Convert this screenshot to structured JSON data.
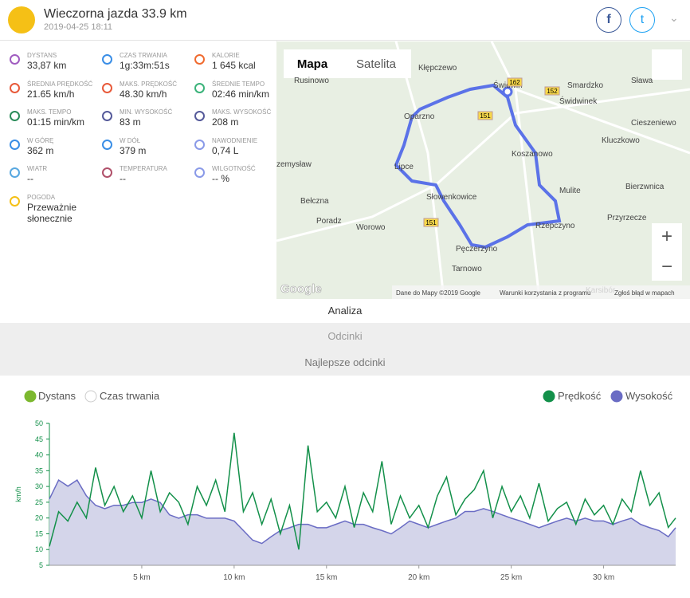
{
  "header": {
    "title": "Wieczorna jazda 33.9 km",
    "date": "2019-04-25 18:11"
  },
  "stats": [
    {
      "label": "DYSTANS",
      "value": "33,87 km"
    },
    {
      "label": "CZAS TRWANIA",
      "value": "1g:33m:51s"
    },
    {
      "label": "KALORIE",
      "value": "1 645 kcal"
    },
    {
      "label": "ŚREDNIA PRĘDKOŚĆ",
      "value": "21.65 km/h"
    },
    {
      "label": "MAKS. PRĘDKOŚĆ",
      "value": "48.30 km/h"
    },
    {
      "label": "ŚREDNIE TEMPO",
      "value": "02:46 min/km"
    },
    {
      "label": "MAKS. TEMPO",
      "value": "01:15 min/km"
    },
    {
      "label": "MIN. WYSOKOŚĆ",
      "value": "83 m"
    },
    {
      "label": "MAKS. WYSOKOŚĆ",
      "value": "208 m"
    },
    {
      "label": "W GÓRĘ",
      "value": "362 m"
    },
    {
      "label": "W DÓŁ",
      "value": "379 m"
    },
    {
      "label": "NAWODNIENIE",
      "value": "0,74 L"
    },
    {
      "label": "WIATR",
      "value": "--"
    },
    {
      "label": "TEMPERATURA",
      "value": "--"
    },
    {
      "label": "WILGOTNOŚĆ",
      "value": "-- %"
    },
    {
      "label": "POGODA",
      "value": "Przeważnie słonecznie"
    }
  ],
  "map": {
    "buttons": [
      "Mapa",
      "Satelita"
    ],
    "places": [
      "Kłępczewo",
      "Rusinowo",
      "Świdwin",
      "Smardzko",
      "Sława",
      "Świdwinek",
      "Oparzno",
      "Cieszeniewo",
      "Koszanowo",
      "Kluczkowo",
      "zemysław",
      "Lipce",
      "Mulite",
      "Bierzwnica",
      "Bełczna",
      "Słowenkowice",
      "Przyrzecze",
      "Poradz",
      "Worowo",
      "Rzepczyno",
      "Pęczerzyno",
      "Tarnowo",
      "Karsibór"
    ],
    "roads": [
      "162",
      "152",
      "151",
      "151"
    ],
    "attribution": [
      "Google",
      "Dane do Mapy ©2019 Google",
      "Warunki korzystania z programu",
      "Zgłoś błąd w mapach"
    ]
  },
  "tabs": [
    "Analiza",
    "Odcinki",
    "Najlepsze odcinki"
  ],
  "chart_data": {
    "type": "line",
    "x_options": [
      "Dystans",
      "Czas trwania"
    ],
    "ylabel": "km/h",
    "x": [
      0,
      0.5,
      1,
      1.5,
      2,
      2.5,
      3,
      3.5,
      4,
      4.5,
      5,
      5.5,
      6,
      6.5,
      7,
      7.5,
      8,
      8.5,
      9,
      9.5,
      10,
      10.5,
      11,
      11.5,
      12,
      12.5,
      13,
      13.5,
      14,
      14.5,
      15,
      15.5,
      16,
      16.5,
      17,
      17.5,
      18,
      18.5,
      19,
      19.5,
      20,
      20.5,
      21,
      21.5,
      22,
      22.5,
      23,
      23.5,
      24,
      24.5,
      25,
      25.5,
      26,
      26.5,
      27,
      27.5,
      28,
      28.5,
      29,
      29.5,
      30,
      30.5,
      31,
      31.5,
      32,
      32.5,
      33,
      33.5,
      33.9
    ],
    "series": [
      {
        "name": "Prędkość",
        "color": "#13904a",
        "values": [
          11,
          22,
          19,
          25,
          20,
          36,
          24,
          30,
          22,
          27,
          20,
          35,
          22,
          28,
          25,
          18,
          30,
          24,
          32,
          22,
          47,
          22,
          28,
          18,
          26,
          15,
          24,
          10,
          43,
          22,
          25,
          20,
          30,
          17,
          28,
          22,
          38,
          18,
          27,
          20,
          24,
          17,
          27,
          33,
          21,
          26,
          29,
          35,
          20,
          30,
          22,
          27,
          20,
          31,
          19,
          23,
          25,
          18,
          26,
          21,
          24,
          18,
          26,
          22,
          35,
          24,
          28,
          17,
          20
        ]
      },
      {
        "name": "Wysokość",
        "color": "#6a6cc4",
        "axis": "y2",
        "values": [
          171,
          205,
          194,
          205,
          177,
          160,
          154,
          160,
          160,
          165,
          165,
          171,
          165,
          143,
          137,
          143,
          143,
          137,
          137,
          137,
          132,
          115,
          98,
          92,
          104,
          115,
          120,
          126,
          126,
          120,
          120,
          126,
          132,
          126,
          126,
          120,
          115,
          109,
          120,
          132,
          126,
          120,
          126,
          132,
          137,
          149,
          149,
          154,
          149,
          143,
          137,
          132,
          126,
          120,
          126,
          132,
          137,
          132,
          137,
          132,
          132,
          126,
          132,
          137,
          126,
          120,
          115,
          104,
          120
        ]
      }
    ],
    "xlim": [
      0,
      33.9
    ],
    "ylim": [
      5,
      50
    ],
    "y2lim": [
      53,
      306
    ],
    "yticks": [
      5,
      10,
      15,
      20,
      25,
      30,
      35,
      40,
      45,
      50
    ],
    "xticks": [
      {
        "value": 5,
        "label": "5 km"
      },
      {
        "value": 10,
        "label": "10 km"
      },
      {
        "value": 15,
        "label": "15 km"
      },
      {
        "value": 20,
        "label": "20 km"
      },
      {
        "value": 25,
        "label": "25 km"
      },
      {
        "value": 30,
        "label": "30 km"
      }
    ]
  }
}
